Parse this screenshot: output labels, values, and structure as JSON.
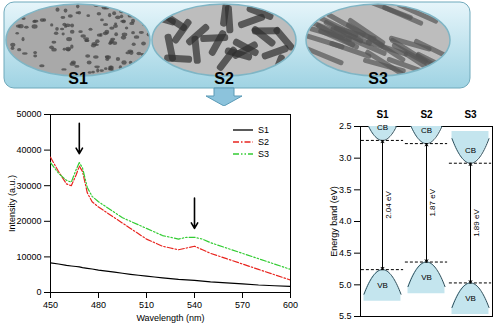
{
  "panels": {
    "labels": [
      "S1",
      "S2",
      "S3"
    ]
  },
  "chart_data": [
    {
      "type": "line",
      "x_label": "Wavelength (nm)",
      "y_label": "Intensity (a.u.)",
      "x": [
        450,
        455,
        460,
        463,
        466,
        468,
        470,
        473,
        476,
        480,
        485,
        490,
        495,
        500,
        505,
        510,
        515,
        520,
        525,
        530,
        535,
        540,
        545,
        550,
        560,
        570,
        580,
        590,
        600
      ],
      "series": [
        {
          "name": "S1",
          "color": "#000000",
          "line_style": "solid",
          "values": [
            8300,
            8000,
            7600,
            7450,
            7300,
            7200,
            7000,
            6800,
            6600,
            6300,
            6000,
            5700,
            5400,
            5100,
            4850,
            4600,
            4350,
            4100,
            3900,
            3700,
            3550,
            3400,
            3200,
            3000,
            2700,
            2400,
            2100,
            1900,
            1700
          ]
        },
        {
          "name": "S2",
          "color": "#e8251f",
          "line_style": "dashdot",
          "values": [
            38000,
            34000,
            30500,
            30000,
            33000,
            35500,
            34000,
            28000,
            25500,
            24000,
            22500,
            21000,
            19500,
            18000,
            16500,
            15000,
            14000,
            13000,
            12500,
            12000,
            12500,
            13000,
            12000,
            11000,
            9500,
            8000,
            6500,
            5000,
            3500
          ]
        },
        {
          "name": "S3",
          "color": "#33cc33",
          "line_style": "dashdotdot",
          "values": [
            36500,
            33500,
            31500,
            31000,
            34500,
            36500,
            35000,
            29500,
            27000,
            25500,
            24000,
            22500,
            21000,
            20000,
            19000,
            18000,
            17000,
            16000,
            15500,
            15000,
            15500,
            15500,
            15000,
            14000,
            12500,
            11000,
            9500,
            8000,
            6500
          ]
        }
      ],
      "peaks": [
        468,
        540
      ],
      "xlim": [
        450,
        600
      ],
      "xticks": [
        450,
        480,
        510,
        540,
        570,
        600
      ],
      "ylim": [
        0,
        50000
      ],
      "yticks": [
        0,
        10000,
        20000,
        30000,
        40000,
        50000
      ],
      "legend": "upper right"
    },
    {
      "type": "band_diagram",
      "y_label": "Energy band (eV)",
      "categories": [
        "S1",
        "S2",
        "S3"
      ],
      "series": [
        {
          "name": "CB",
          "color": "#c4e5ee",
          "values": [
            2.72,
            2.77,
            3.08
          ]
        },
        {
          "name": "VB",
          "color": "#c4e5ee",
          "values": [
            4.76,
            4.64,
            4.97
          ]
        }
      ],
      "band_gap": {
        "values": [
          2.04,
          1.87,
          1.89
        ],
        "value_labels": [
          "2.04 eV",
          "1.87 eV",
          "1.89 eV"
        ]
      },
      "ylim": [
        5.5,
        2.5
      ],
      "yticks": [
        {
          "value": 2.5,
          "label": "2.5"
        },
        {
          "value": 3,
          "label": "3.0"
        },
        {
          "value": 3.5,
          "label": "3.5"
        },
        {
          "value": 4,
          "label": "4.0"
        },
        {
          "value": 4.5,
          "label": "4.5"
        },
        {
          "value": 5,
          "label": "5.0"
        },
        {
          "value": 5.5,
          "label": "5.5"
        }
      ]
    }
  ]
}
